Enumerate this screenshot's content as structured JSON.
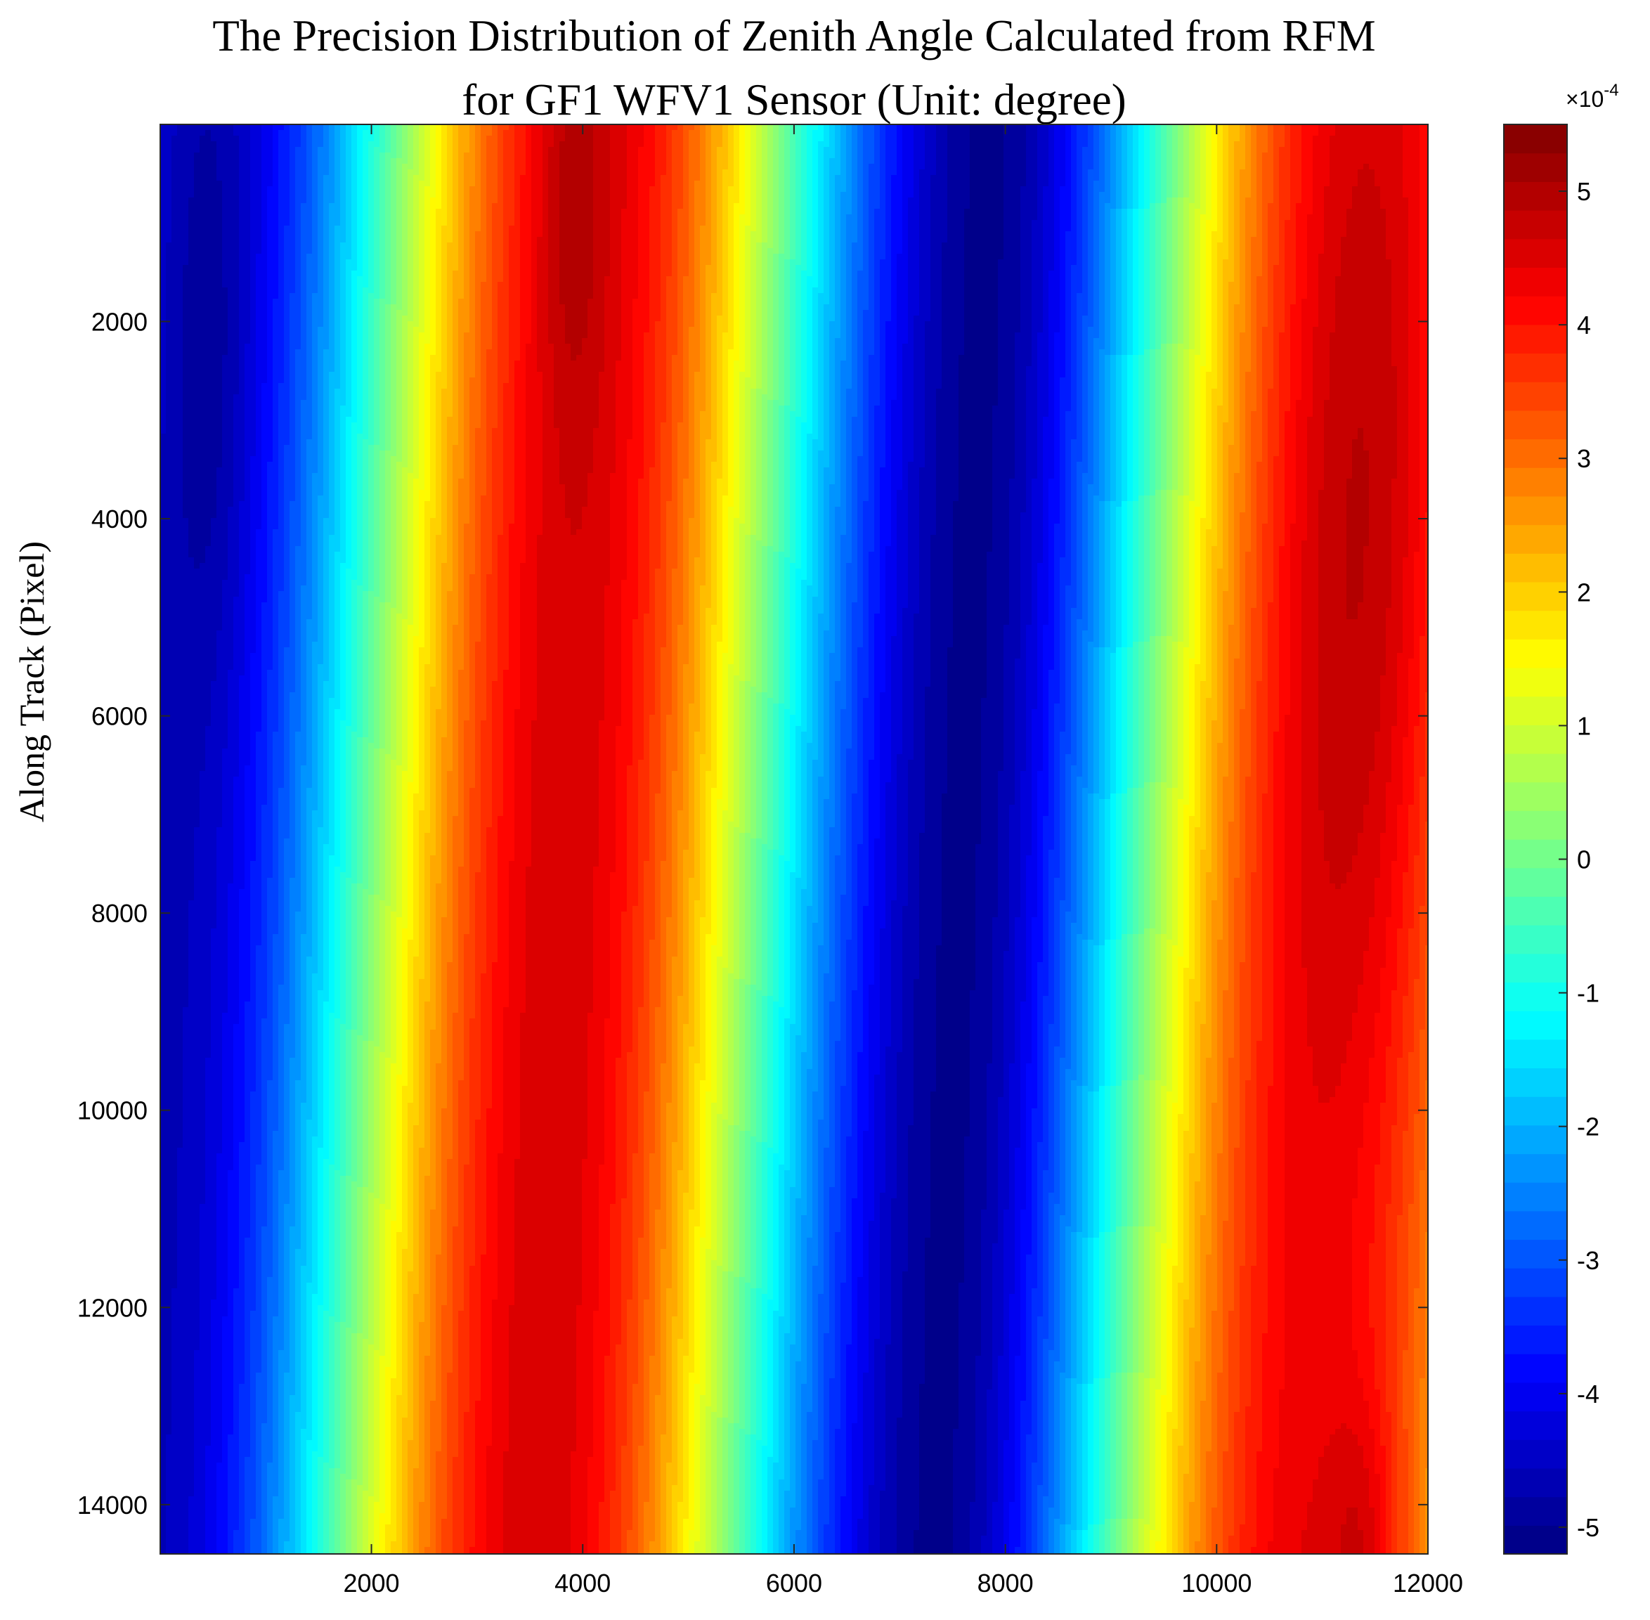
{
  "chart_data": {
    "type": "heatmap",
    "title_lines": [
      "The Precision Distribution of Zenith Angle Calculated from RFM",
      "for GF1 WFV1 Sensor (Unit: degree)"
    ],
    "xlabel": "",
    "ylabel": "Along Track (Pixel)",
    "xlim": [
      1,
      12000
    ],
    "ylim": [
      14500,
      1
    ],
    "y_reversed": true,
    "x_ticks": [
      2000,
      4000,
      6000,
      8000,
      10000,
      12000
    ],
    "y_ticks": [
      2000,
      4000,
      6000,
      8000,
      10000,
      12000,
      14000
    ],
    "colormap": "jet",
    "colorbar": {
      "min": -5.2,
      "max": 5.5,
      "levels": 50,
      "ticks": [
        5,
        4,
        3,
        2,
        1,
        0,
        -1,
        -2,
        -3,
        -4,
        -5
      ],
      "exponent_label": "×10",
      "exponent_power": "-4"
    },
    "field": {
      "description_free": true,
      "ridge_positions_top": [
        600,
        3900,
        7900,
        11400
      ],
      "ridge_positions_bottom": [
        150,
        3300,
        7700,
        11400
      ],
      "samples": [
        {
          "x": 600,
          "y": 2500,
          "value": -5.1
        },
        {
          "x": 3900,
          "y": 1000,
          "value": 5.2
        },
        {
          "x": 3300,
          "y": 12000,
          "value": 3.8
        },
        {
          "x": 7900,
          "y": 11000,
          "value": -5.0
        },
        {
          "x": 11400,
          "y": 14300,
          "value": 5.4
        },
        {
          "x": 2000,
          "y": 8000,
          "value": 0.5
        },
        {
          "x": 6000,
          "y": 8000,
          "value": 0.0
        },
        {
          "x": 10000,
          "y": 8000,
          "value": 0.3
        }
      ]
    }
  }
}
